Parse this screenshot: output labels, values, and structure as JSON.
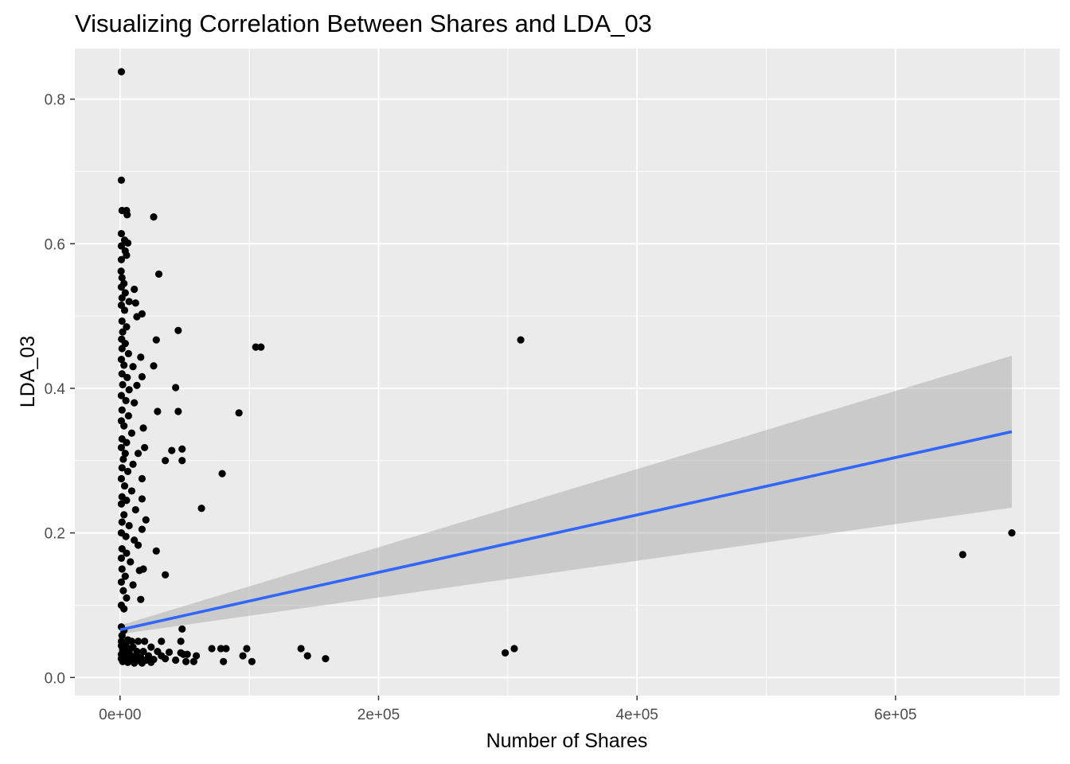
{
  "chart_data": {
    "type": "scatter",
    "title": "Visualizing Correlation Between Shares and LDA_03",
    "xlabel": "Number of Shares",
    "ylabel": "LDA_03",
    "xlim": [
      -35000,
      727000
    ],
    "ylim": [
      -0.025,
      0.87
    ],
    "x_ticks": [
      0,
      200000,
      400000,
      600000
    ],
    "x_tick_labels": [
      "0e+00",
      "2e+05",
      "4e+05",
      "6e+05"
    ],
    "y_ticks": [
      0.0,
      0.2,
      0.4,
      0.6,
      0.8
    ],
    "y_tick_labels": [
      "0.0",
      "0.2",
      "0.4",
      "0.6",
      "0.8"
    ],
    "grid": true,
    "background": "#ebebeb",
    "point_color": "#000000",
    "points": [
      [
        1000,
        0.838
      ],
      [
        1000,
        0.688
      ],
      [
        1500,
        0.646
      ],
      [
        5000,
        0.646
      ],
      [
        5500,
        0.64
      ],
      [
        26000,
        0.637
      ],
      [
        1000,
        0.614
      ],
      [
        3500,
        0.605
      ],
      [
        6000,
        0.601
      ],
      [
        1000,
        0.597
      ],
      [
        4000,
        0.59
      ],
      [
        5000,
        0.584
      ],
      [
        1000,
        0.578
      ],
      [
        30000,
        0.558
      ],
      [
        800,
        0.562
      ],
      [
        1500,
        0.553
      ],
      [
        3000,
        0.545
      ],
      [
        1000,
        0.54
      ],
      [
        11000,
        0.537
      ],
      [
        4000,
        0.532
      ],
      [
        1500,
        0.525
      ],
      [
        7000,
        0.52
      ],
      [
        1000,
        0.515
      ],
      [
        12000,
        0.518
      ],
      [
        3500,
        0.508
      ],
      [
        17000,
        0.503
      ],
      [
        13000,
        0.499
      ],
      [
        45000,
        0.48
      ],
      [
        1500,
        0.493
      ],
      [
        5000,
        0.485
      ],
      [
        2000,
        0.478
      ],
      [
        28000,
        0.467
      ],
      [
        109000,
        0.457
      ],
      [
        105000,
        0.457
      ],
      [
        310000,
        0.467
      ],
      [
        1200,
        0.468
      ],
      [
        4000,
        0.462
      ],
      [
        1500,
        0.455
      ],
      [
        6500,
        0.448
      ],
      [
        16000,
        0.443
      ],
      [
        26000,
        0.431
      ],
      [
        1000,
        0.44
      ],
      [
        3000,
        0.432
      ],
      [
        10000,
        0.43
      ],
      [
        17000,
        0.416
      ],
      [
        1500,
        0.42
      ],
      [
        5500,
        0.415
      ],
      [
        13000,
        0.404
      ],
      [
        43000,
        0.401
      ],
      [
        2000,
        0.405
      ],
      [
        7000,
        0.398
      ],
      [
        1000,
        0.39
      ],
      [
        4500,
        0.383
      ],
      [
        11000,
        0.38
      ],
      [
        45000,
        0.368
      ],
      [
        29000,
        0.368
      ],
      [
        92000,
        0.366
      ],
      [
        1500,
        0.37
      ],
      [
        6500,
        0.362
      ],
      [
        1000,
        0.355
      ],
      [
        18000,
        0.345
      ],
      [
        3000,
        0.348
      ],
      [
        9000,
        0.338
      ],
      [
        1500,
        0.33
      ],
      [
        5000,
        0.325
      ],
      [
        48000,
        0.316
      ],
      [
        40000,
        0.314
      ],
      [
        19000,
        0.318
      ],
      [
        14000,
        0.31
      ],
      [
        1000,
        0.318
      ],
      [
        4000,
        0.31
      ],
      [
        35000,
        0.3
      ],
      [
        48000,
        0.3
      ],
      [
        2500,
        0.302
      ],
      [
        10000,
        0.295
      ],
      [
        79000,
        0.282
      ],
      [
        1500,
        0.29
      ],
      [
        6000,
        0.285
      ],
      [
        17000,
        0.275
      ],
      [
        1000,
        0.275
      ],
      [
        3500,
        0.265
      ],
      [
        9000,
        0.258
      ],
      [
        1500,
        0.25
      ],
      [
        17000,
        0.247
      ],
      [
        63000,
        0.234
      ],
      [
        5000,
        0.245
      ],
      [
        1000,
        0.24
      ],
      [
        12000,
        0.232
      ],
      [
        3000,
        0.225
      ],
      [
        20000,
        0.218
      ],
      [
        1500,
        0.215
      ],
      [
        7000,
        0.21
      ],
      [
        17000,
        0.205
      ],
      [
        1000,
        0.2
      ],
      [
        4500,
        0.195
      ],
      [
        11000,
        0.19
      ],
      [
        14000,
        0.183
      ],
      [
        28000,
        0.175
      ],
      [
        1500,
        0.178
      ],
      [
        5000,
        0.172
      ],
      [
        1000,
        0.165
      ],
      [
        8000,
        0.16
      ],
      [
        18000,
        0.15
      ],
      [
        15000,
        0.148
      ],
      [
        1500,
        0.15
      ],
      [
        35000,
        0.142
      ],
      [
        4000,
        0.14
      ],
      [
        1000,
        0.132
      ],
      [
        10000,
        0.128
      ],
      [
        2500,
        0.12
      ],
      [
        16000,
        0.108
      ],
      [
        5000,
        0.11
      ],
      [
        1000,
        0.1
      ],
      [
        3000,
        0.095
      ],
      [
        652000,
        0.17
      ],
      [
        690000,
        0.2
      ],
      [
        1000,
        0.07
      ],
      [
        3000,
        0.065
      ],
      [
        1500,
        0.058
      ],
      [
        6000,
        0.052
      ],
      [
        1000,
        0.05
      ],
      [
        4500,
        0.048
      ],
      [
        9000,
        0.05
      ],
      [
        14000,
        0.05
      ],
      [
        19000,
        0.05
      ],
      [
        32000,
        0.05
      ],
      [
        47000,
        0.05
      ],
      [
        1000,
        0.044
      ],
      [
        5000,
        0.042
      ],
      [
        10000,
        0.042
      ],
      [
        24000,
        0.042
      ],
      [
        48000,
        0.067
      ],
      [
        2000,
        0.038
      ],
      [
        7000,
        0.036
      ],
      [
        13000,
        0.036
      ],
      [
        18000,
        0.036
      ],
      [
        29000,
        0.036
      ],
      [
        38000,
        0.035
      ],
      [
        47000,
        0.034
      ],
      [
        52000,
        0.032
      ],
      [
        1000,
        0.032
      ],
      [
        4000,
        0.03
      ],
      [
        8500,
        0.03
      ],
      [
        12000,
        0.028
      ],
      [
        16000,
        0.028
      ],
      [
        22000,
        0.03
      ],
      [
        32000,
        0.03
      ],
      [
        1000,
        0.026
      ],
      [
        5000,
        0.025
      ],
      [
        10000,
        0.024
      ],
      [
        15000,
        0.023
      ],
      [
        20000,
        0.024
      ],
      [
        26000,
        0.025
      ],
      [
        35000,
        0.026
      ],
      [
        43000,
        0.024
      ],
      [
        51000,
        0.022
      ],
      [
        57000,
        0.022
      ],
      [
        59000,
        0.03
      ],
      [
        2000,
        0.022
      ],
      [
        6000,
        0.021
      ],
      [
        11000,
        0.02
      ],
      [
        17000,
        0.02
      ],
      [
        24000,
        0.021
      ],
      [
        49000,
        0.032
      ],
      [
        71000,
        0.04
      ],
      [
        78000,
        0.04
      ],
      [
        82000,
        0.04
      ],
      [
        80000,
        0.022
      ],
      [
        95000,
        0.03
      ],
      [
        98000,
        0.04
      ],
      [
        102000,
        0.022
      ],
      [
        140000,
        0.04
      ],
      [
        145000,
        0.03
      ],
      [
        159000,
        0.026
      ],
      [
        298000,
        0.034
      ],
      [
        305000,
        0.04
      ]
    ],
    "trend": {
      "label": "linear fit",
      "color": "#3366ff",
      "band_color": "#999999",
      "x": [
        0,
        690000
      ],
      "y": [
        0.066,
        0.34
      ],
      "ci_low": [
        0.06,
        0.235
      ],
      "ci_high": [
        0.072,
        0.445
      ]
    }
  }
}
